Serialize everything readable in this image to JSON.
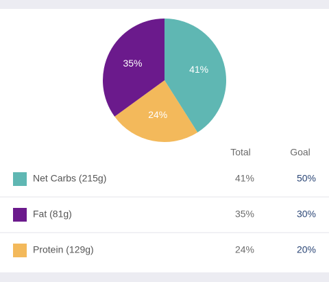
{
  "chart_data": {
    "type": "pie",
    "values": [
      41,
      24,
      35
    ],
    "value_labels": [
      "41%",
      "24%",
      "35%"
    ],
    "colors": [
      "#5fb7b3",
      "#f3b95b",
      "#6b1a8c"
    ]
  },
  "table": {
    "header": [
      "Total",
      "Goal"
    ],
    "rows": [
      {
        "label": "Net Carbs (215g)",
        "color": "#5fb7b3",
        "total": "41%",
        "goal": "50%"
      },
      {
        "label": "Fat (81g)",
        "color": "#6b1a8c",
        "total": "35%",
        "goal": "30%"
      },
      {
        "label": "Protein (129g)",
        "color": "#f3b95b",
        "total": "24%",
        "goal": "20%"
      }
    ]
  }
}
